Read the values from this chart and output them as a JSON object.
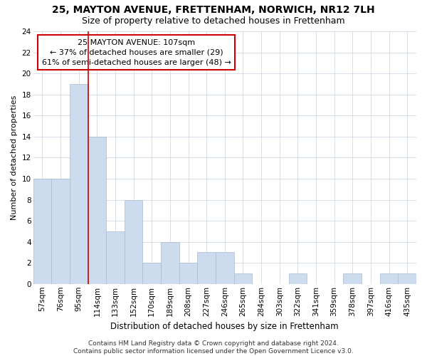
{
  "title": "25, MAYTON AVENUE, FRETTENHAM, NORWICH, NR12 7LH",
  "subtitle": "Size of property relative to detached houses in Frettenham",
  "xlabel": "Distribution of detached houses by size in Frettenham",
  "ylabel": "Number of detached properties",
  "categories": [
    "57sqm",
    "76sqm",
    "95sqm",
    "114sqm",
    "133sqm",
    "152sqm",
    "170sqm",
    "189sqm",
    "208sqm",
    "227sqm",
    "246sqm",
    "265sqm",
    "284sqm",
    "303sqm",
    "322sqm",
    "341sqm",
    "359sqm",
    "378sqm",
    "397sqm",
    "416sqm",
    "435sqm"
  ],
  "values": [
    10,
    10,
    19,
    14,
    5,
    8,
    2,
    4,
    2,
    3,
    3,
    1,
    0,
    0,
    1,
    0,
    0,
    1,
    0,
    1,
    1
  ],
  "bar_color": "#ccdcee",
  "bar_edge_color": "#aabbcc",
  "vline_color": "#cc0000",
  "annotation_line1": "25 MAYTON AVENUE: 107sqm",
  "annotation_line2": "← 37% of detached houses are smaller (29)",
  "annotation_line3": "61% of semi-detached houses are larger (48) →",
  "annotation_box_edge": "#cc0000",
  "ylim": [
    0,
    24
  ],
  "yticks": [
    0,
    2,
    4,
    6,
    8,
    10,
    12,
    14,
    16,
    18,
    20,
    22,
    24
  ],
  "footer": "Contains HM Land Registry data © Crown copyright and database right 2024.\nContains public sector information licensed under the Open Government Licence v3.0.",
  "title_fontsize": 10,
  "subtitle_fontsize": 9,
  "xlabel_fontsize": 8.5,
  "ylabel_fontsize": 8,
  "tick_fontsize": 7.5,
  "annotation_fontsize": 8,
  "footer_fontsize": 6.5
}
